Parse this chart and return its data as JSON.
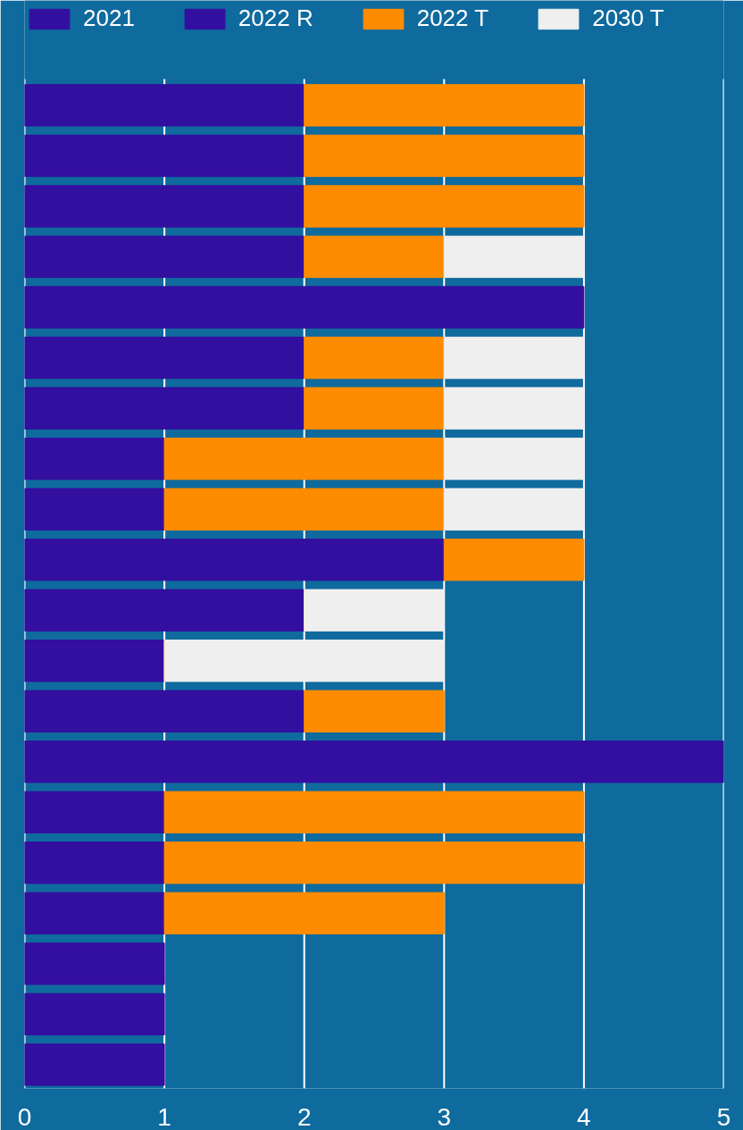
{
  "chart_data": {
    "type": "bar",
    "orientation": "horizontal",
    "stacked": true,
    "categories": [
      null,
      null,
      null,
      null,
      null,
      null,
      null,
      null,
      null,
      null,
      null,
      null,
      null,
      null,
      null,
      null,
      null,
      null,
      null,
      null
    ],
    "series": [
      {
        "name": "2021",
        "color": "#330f9f",
        "values": [
          2,
          2,
          2,
          2,
          4,
          2,
          2,
          1,
          1,
          3,
          1,
          1,
          2,
          5,
          1,
          1,
          1,
          1,
          1,
          1
        ]
      },
      {
        "name": "2022 R",
        "color": "#330f9f",
        "values": [
          null,
          null,
          null,
          null,
          null,
          null,
          null,
          null,
          null,
          null,
          1,
          null,
          null,
          null,
          null,
          null,
          null,
          null,
          null,
          null
        ]
      },
      {
        "name": "2022 T",
        "color": "#ff8c00",
        "values": [
          2,
          2,
          2,
          1,
          null,
          1,
          1,
          2,
          2,
          1,
          0,
          0,
          1,
          null,
          3,
          3,
          2,
          null,
          null,
          null
        ]
      },
      {
        "name": "2030 T",
        "color": "#efefef",
        "values": [
          null,
          null,
          null,
          1,
          null,
          1,
          1,
          1,
          1,
          null,
          1,
          2,
          null,
          null,
          null,
          null,
          null,
          null,
          null,
          null
        ]
      }
    ],
    "xlim": [
      0,
      5
    ],
    "xticks": [
      0,
      1,
      2,
      3,
      4,
      5
    ],
    "grid": "x",
    "legend": "top left"
  }
}
